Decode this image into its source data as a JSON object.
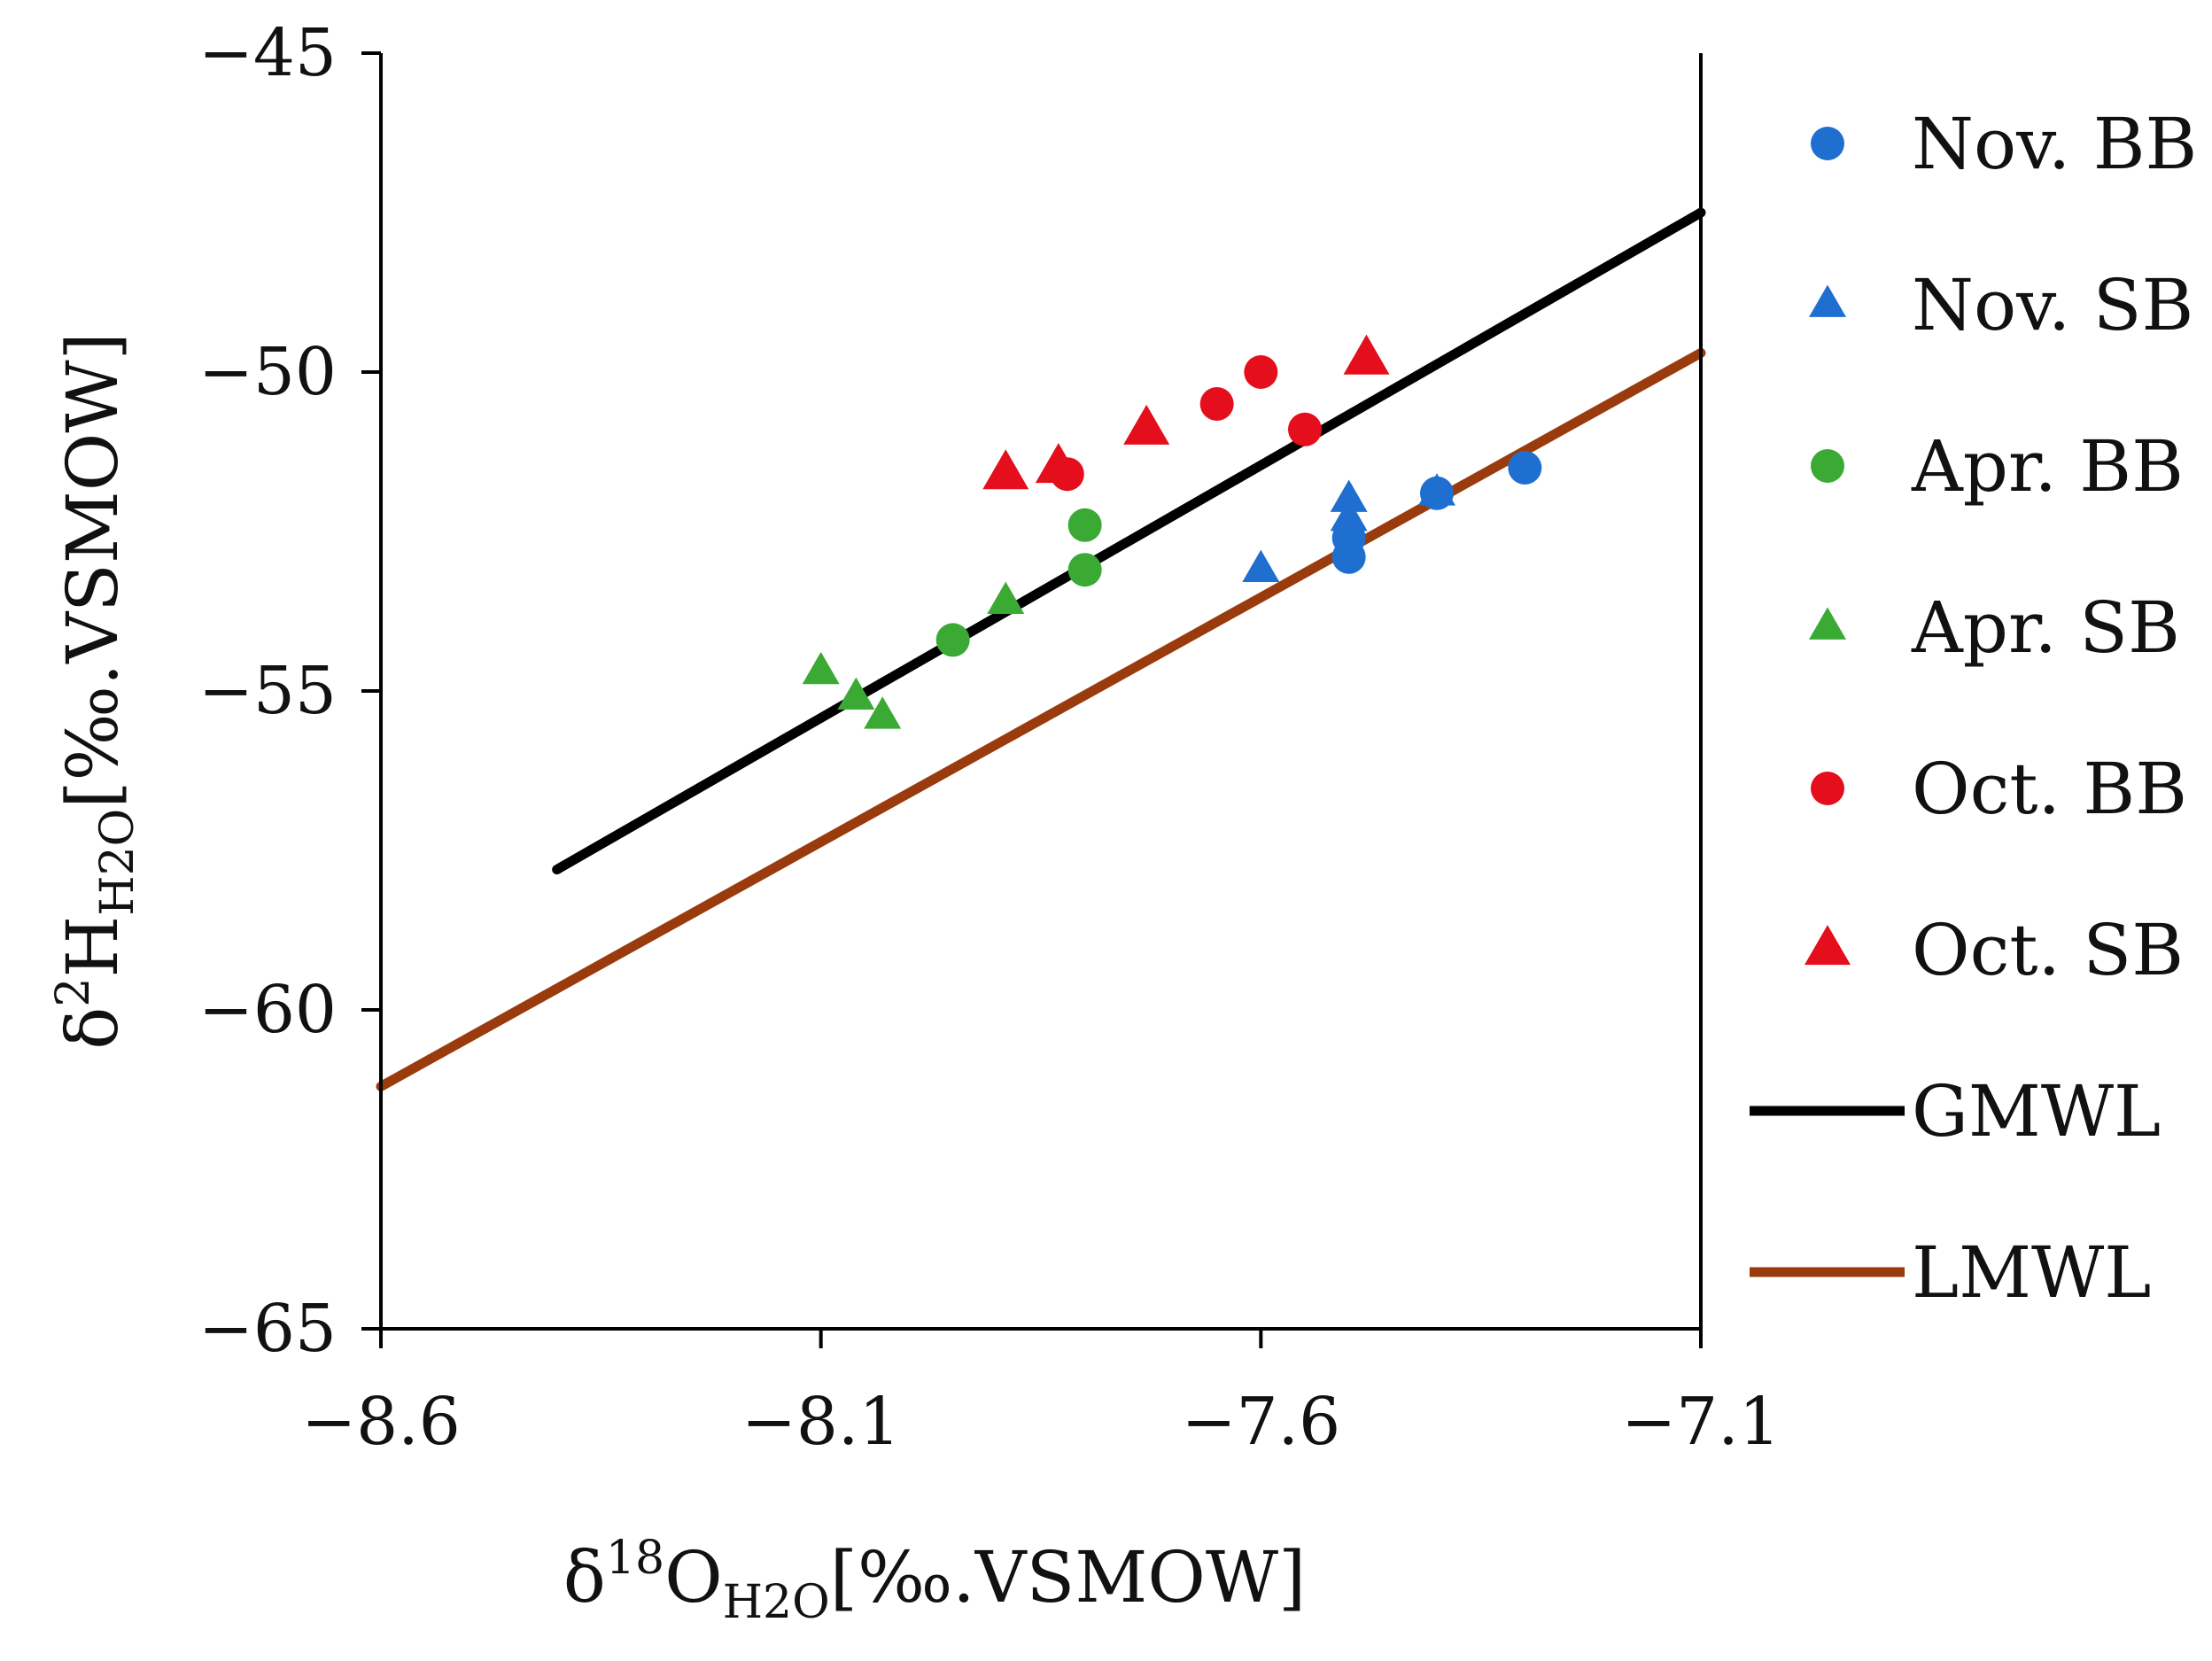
{
  "chart_data": {
    "type": "scatter",
    "title": "",
    "xlabel": {
      "main": "δ",
      "sup": "18",
      "mid": "O",
      "sub": "H2O",
      "tail": "[‰.VSMOW]"
    },
    "ylabel": {
      "main": "δ",
      "sup": "2",
      "mid": "H",
      "sub": "H2O",
      "tail": "[‰.VSMOW]"
    },
    "xlim": [
      -8.6,
      -7.1
    ],
    "ylim": [
      -65,
      -45
    ],
    "xticks": [
      -8.6,
      -8.1,
      -7.6,
      -7.1
    ],
    "yticks": [
      -65,
      -60,
      -55,
      -50,
      -45
    ],
    "xtick_labels": [
      "−8.6",
      "−8.1",
      "−7.6",
      "−7.1"
    ],
    "ytick_labels": [
      "−65",
      "−60",
      "−55",
      "−50",
      "−45"
    ],
    "series": [
      {
        "name": "Nov. BB",
        "marker": "circle",
        "color": "#1f6fd0",
        "size": "small",
        "points": [
          [
            -7.5,
            -52.9
          ],
          [
            -7.5,
            -52.6
          ],
          [
            -7.4,
            -51.9
          ],
          [
            -7.3,
            -51.5
          ]
        ]
      },
      {
        "name": "Nov. SB",
        "marker": "triangle",
        "color": "#1f6fd0",
        "size": "small",
        "points": [
          [
            -7.6,
            -53.1
          ],
          [
            -7.5,
            -52.3
          ],
          [
            -7.5,
            -52.0
          ],
          [
            -7.4,
            -51.9
          ]
        ]
      },
      {
        "name": "Apr. BB",
        "marker": "circle",
        "color": "#3aaa35",
        "size": "small",
        "points": [
          [
            -7.95,
            -54.2
          ],
          [
            -7.8,
            -53.1
          ],
          [
            -7.8,
            -52.4
          ]
        ]
      },
      {
        "name": "Apr. SB",
        "marker": "triangle",
        "color": "#3aaa35",
        "size": "small",
        "points": [
          [
            -8.1,
            -54.7
          ],
          [
            -8.06,
            -55.1
          ],
          [
            -8.03,
            -55.4
          ],
          [
            -7.89,
            -53.6
          ]
        ]
      },
      {
        "name": "Oct. BB",
        "marker": "circle",
        "color": "#e50e1c",
        "size": "small",
        "points": [
          [
            -7.82,
            -51.6
          ],
          [
            -7.65,
            -50.5
          ],
          [
            -7.6,
            -50.0
          ],
          [
            -7.55,
            -50.9
          ]
        ]
      },
      {
        "name": "Oct. SB",
        "marker": "triangle",
        "color": "#e50e1c",
        "size": "large",
        "points": [
          [
            -7.89,
            -51.6
          ],
          [
            -7.83,
            -51.5
          ],
          [
            -7.73,
            -50.9
          ],
          [
            -7.48,
            -49.8
          ]
        ]
      }
    ],
    "lines": [
      {
        "name": "GMWL",
        "color": "#000000",
        "points": [
          [
            -8.4,
            -57.8
          ],
          [
            -7.1,
            -47.5
          ]
        ]
      },
      {
        "name": "LMWL",
        "color": "#9a3b0d",
        "points": [
          [
            -8.6,
            -61.2
          ],
          [
            -7.1,
            -49.7
          ]
        ]
      }
    ],
    "legend": {
      "position": "right",
      "entries": [
        "Nov. BB",
        "Nov. SB",
        "Apr. BB",
        "Apr. SB",
        "Oct. BB",
        "Oct. SB",
        "GMWL",
        "LMWL"
      ]
    }
  }
}
